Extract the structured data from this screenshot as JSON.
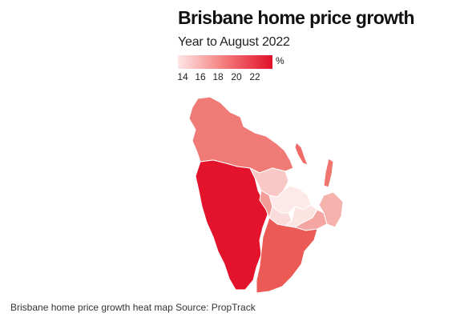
{
  "title": "Brisbane home price growth",
  "subtitle": "Year to August 2022",
  "legend": {
    "unit": "%",
    "ticks": [
      "14",
      "16",
      "18",
      "20",
      "22"
    ],
    "min_color": "#fde3e3",
    "max_color": "#e0102a"
  },
  "regions_color_scale": {
    "low": "#fbe9e9",
    "mid": "#f28b8b",
    "high": "#e3132c"
  },
  "caption": "Brisbane home price growth heat map Source: PropTrack"
}
